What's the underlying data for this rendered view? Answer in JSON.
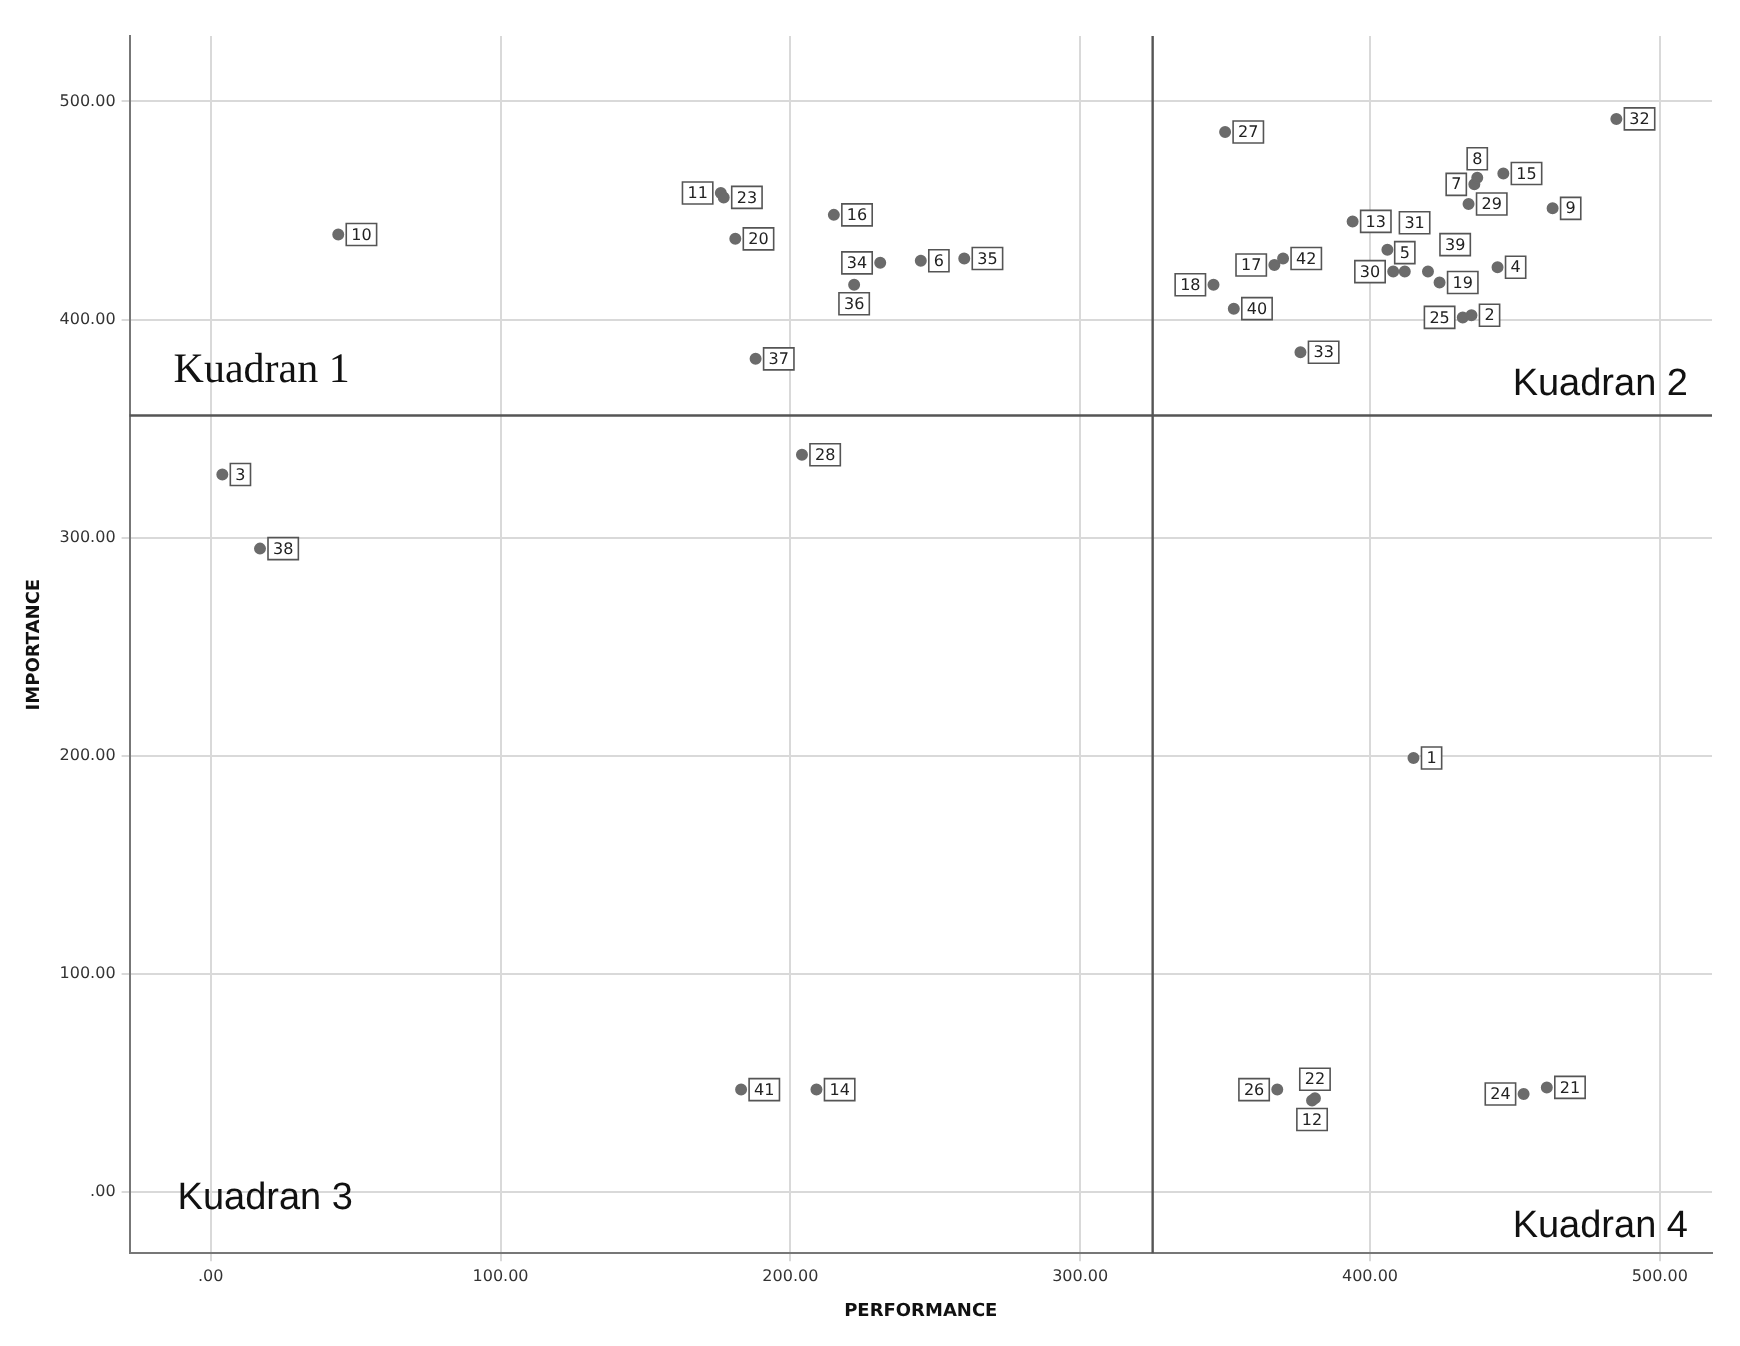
{
  "chart_data": {
    "type": "scatter",
    "xlabel": "PERFORMANCE",
    "ylabel": "IMPORTANCE",
    "x": [
      415,
      435,
      4,
      444,
      412,
      245,
      436,
      437,
      463,
      44,
      176,
      380,
      394,
      209,
      446,
      215,
      367,
      346,
      424,
      181,
      461,
      381,
      177,
      453,
      432,
      368,
      350,
      204,
      434,
      408,
      406,
      485,
      376,
      231,
      260,
      222,
      188,
      17,
      420,
      353,
      183,
      370
    ],
    "series": [
      {
        "color": "#6b6b6b",
        "values": [
          199,
          402,
          329,
          424,
          422,
          427,
          462,
          465,
          451,
          439,
          458,
          42,
          445,
          47,
          467,
          448,
          425,
          416,
          417,
          437,
          48,
          43,
          456,
          45,
          401,
          47,
          486,
          338,
          453,
          422,
          432,
          492,
          385,
          426,
          428,
          416,
          382,
          295,
          422,
          405,
          47,
          428
        ]
      }
    ],
    "xlim": [
      -28,
      518
    ],
    "ylim": [
      -28,
      530
    ],
    "xticks": [
      {
        "value": 0,
        "label": ".00"
      },
      {
        "value": 100,
        "label": "100.00"
      },
      {
        "value": 200,
        "label": "200.00"
      },
      {
        "value": 300,
        "label": "300.00"
      },
      {
        "value": 400,
        "label": "400.00"
      },
      {
        "value": 500,
        "label": "500.00"
      }
    ],
    "yticks": [
      {
        "value": 0,
        "label": ".00"
      },
      {
        "value": 100,
        "label": "100.00"
      },
      {
        "value": 200,
        "label": "200.00"
      },
      {
        "value": 300,
        "label": "300.00"
      },
      {
        "value": 400,
        "label": "400.00"
      },
      {
        "value": 500,
        "label": "500.00"
      }
    ],
    "ref_lines": [
      {
        "axis": "x",
        "value": 325,
        "color": "#555555"
      },
      {
        "axis": "y",
        "value": 356,
        "color": "#555555"
      }
    ],
    "annotations": [
      "Kuadran 1",
      "Kuadran 2",
      "Kuadran 3",
      "Kuadran 4",
      {
        "text": "1",
        "x": 415,
        "y": 199
      },
      {
        "text": "2",
        "x": 435,
        "y": 402
      },
      {
        "text": "3",
        "x": 4,
        "y": 329
      },
      {
        "text": "4",
        "x": 444,
        "y": 424
      },
      {
        "text": "5",
        "x": 412,
        "y": 422
      },
      {
        "text": "6",
        "x": 245,
        "y": 427
      },
      {
        "text": "7",
        "x": 436,
        "y": 462
      },
      {
        "text": "8",
        "x": 437,
        "y": 465
      },
      {
        "text": "9",
        "x": 463,
        "y": 451
      },
      {
        "text": "10",
        "x": 44,
        "y": 439
      },
      {
        "text": "11",
        "x": 176,
        "y": 458
      },
      {
        "text": "12",
        "x": 380,
        "y": 42
      },
      {
        "text": "13",
        "x": 394,
        "y": 445
      },
      {
        "text": "14",
        "x": 209,
        "y": 47
      },
      {
        "text": "15",
        "x": 446,
        "y": 467
      },
      {
        "text": "16",
        "x": 215,
        "y": 448
      },
      {
        "text": "17",
        "x": 367,
        "y": 425
      },
      {
        "text": "18",
        "x": 346,
        "y": 416
      },
      {
        "text": "19",
        "x": 424,
        "y": 417
      },
      {
        "text": "20",
        "x": 181,
        "y": 437
      },
      {
        "text": "21",
        "x": 461,
        "y": 48
      },
      {
        "text": "22",
        "x": 381,
        "y": 43
      },
      {
        "text": "23",
        "x": 177,
        "y": 456
      },
      {
        "text": "24",
        "x": 453,
        "y": 45
      },
      {
        "text": "25",
        "x": 432,
        "y": 401
      },
      {
        "text": "26",
        "x": 368,
        "y": 47
      },
      {
        "text": "27",
        "x": 350,
        "y": 486
      },
      {
        "text": "28",
        "x": 204,
        "y": 338
      },
      {
        "text": "29",
        "x": 434,
        "y": 453
      },
      {
        "text": "30",
        "x": 408,
        "y": 422
      },
      {
        "text": "31",
        "x": 406,
        "y": 432
      },
      {
        "text": "32",
        "x": 485,
        "y": 492
      },
      {
        "text": "33",
        "x": 376,
        "y": 385
      },
      {
        "text": "34",
        "x": 231,
        "y": 426
      },
      {
        "text": "35",
        "x": 260,
        "y": 428
      },
      {
        "text": "36",
        "x": 222,
        "y": 416
      },
      {
        "text": "37",
        "x": 188,
        "y": 382
      },
      {
        "text": "38",
        "x": 17,
        "y": 295
      },
      {
        "text": "39",
        "x": 420,
        "y": 422
      },
      {
        "text": "40",
        "x": 353,
        "y": 405
      },
      {
        "text": "41",
        "x": 183,
        "y": 47
      },
      {
        "text": "42",
        "x": 370,
        "y": 428
      }
    ],
    "grid": true,
    "legend": false,
    "marker": "circle"
  }
}
